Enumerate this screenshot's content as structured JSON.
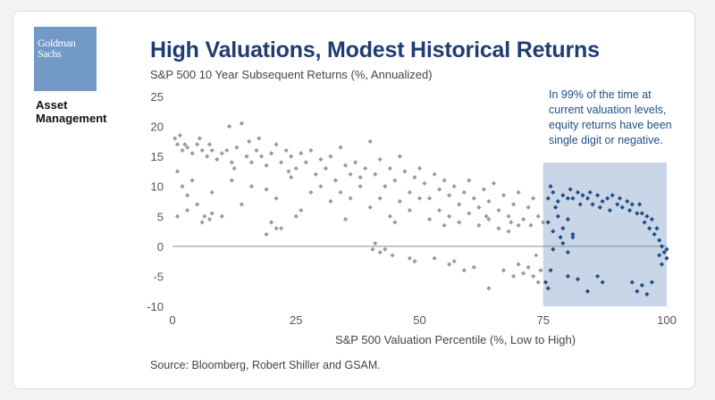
{
  "logo": {
    "line1": "Goldman",
    "line2": "Sachs",
    "color": "#7399c6"
  },
  "brand": {
    "line1": "Asset",
    "line2": "Management"
  },
  "chart_data": {
    "type": "scatter",
    "title": "High Valuations, Modest Historical Returns",
    "subtitle": "S&P 500 10 Year Subsequent Returns (%, Annualized)",
    "xlabel": "S&P 500 Valuation Percentile (%, Low to High)",
    "ylabel": "",
    "xlim": [
      0,
      100
    ],
    "ylim": [
      -10,
      25
    ],
    "xticks": [
      "0",
      "25",
      "50",
      "75",
      "100"
    ],
    "yticks": [
      "25",
      "20",
      "15",
      "10",
      "5",
      "0",
      "-5",
      "-10"
    ],
    "grid": false,
    "zero_line": true,
    "series": [
      {
        "color": "#9a9a9a",
        "points": [
          [
            0.5,
            18
          ],
          [
            1,
            17
          ],
          [
            1.5,
            18.5
          ],
          [
            2,
            16
          ],
          [
            2.5,
            17
          ],
          [
            3,
            16.5
          ],
          [
            4,
            15.5
          ],
          [
            5,
            17
          ],
          [
            5.5,
            18
          ],
          [
            6,
            16
          ],
          [
            7,
            15
          ],
          [
            7.5,
            17
          ],
          [
            8,
            16
          ],
          [
            9,
            14.5
          ],
          [
            10,
            15.5
          ],
          [
            11,
            16
          ],
          [
            11.5,
            20
          ],
          [
            12,
            14
          ],
          [
            12.5,
            13
          ],
          [
            13,
            16.5
          ],
          [
            14,
            20.5
          ],
          [
            15,
            15
          ],
          [
            15.5,
            17.5
          ],
          [
            16,
            14
          ],
          [
            17,
            16
          ],
          [
            17.5,
            18
          ],
          [
            18,
            15
          ],
          [
            19,
            13.5
          ],
          [
            20,
            15.5
          ],
          [
            21,
            17
          ],
          [
            22,
            14
          ],
          [
            23,
            16
          ],
          [
            23.5,
            12.5
          ],
          [
            24,
            15
          ],
          [
            25,
            13
          ],
          [
            26,
            15.5
          ],
          [
            27,
            14
          ],
          [
            28,
            16
          ],
          [
            29,
            12
          ],
          [
            30,
            14.5
          ],
          [
            31,
            13
          ],
          [
            32,
            15
          ],
          [
            33,
            11
          ],
          [
            34,
            16.5
          ],
          [
            35,
            13.5
          ],
          [
            36,
            12
          ],
          [
            37,
            14
          ],
          [
            38,
            11.5
          ],
          [
            39,
            13
          ],
          [
            40,
            17.5
          ],
          [
            41,
            12
          ],
          [
            42,
            14.5
          ],
          [
            43,
            10
          ],
          [
            44,
            13
          ],
          [
            45,
            11
          ],
          [
            46,
            15
          ],
          [
            47,
            12.5
          ],
          [
            48,
            9
          ],
          [
            49,
            11.5
          ],
          [
            50,
            13
          ],
          [
            51,
            10.5
          ],
          [
            52,
            8
          ],
          [
            53,
            12
          ],
          [
            54,
            9.5
          ],
          [
            55,
            11
          ],
          [
            56,
            8.5
          ],
          [
            57,
            10
          ],
          [
            58,
            7
          ],
          [
            59,
            9
          ],
          [
            60,
            11
          ],
          [
            61,
            8
          ],
          [
            62,
            6.5
          ],
          [
            63,
            9.5
          ],
          [
            64,
            7.5
          ],
          [
            65,
            10.5
          ],
          [
            66,
            6
          ],
          [
            67,
            8.5
          ],
          [
            68,
            5
          ],
          [
            69,
            7
          ],
          [
            70,
            9
          ],
          [
            71,
            4.5
          ],
          [
            72,
            6.5
          ],
          [
            73,
            8
          ],
          [
            74,
            5
          ],
          [
            75,
            4
          ],
          [
            72.5,
            3.5
          ],
          [
            68.5,
            4
          ],
          [
            63.5,
            5
          ],
          [
            1,
            12.5
          ],
          [
            2,
            10
          ],
          [
            3,
            8.5
          ],
          [
            4,
            11
          ],
          [
            5,
            7
          ],
          [
            8,
            9
          ],
          [
            10,
            5
          ],
          [
            12,
            11
          ],
          [
            14,
            7
          ],
          [
            16,
            10
          ],
          [
            19,
            9.5
          ],
          [
            21,
            8
          ],
          [
            24,
            11.5
          ],
          [
            26,
            6
          ],
          [
            28,
            9
          ],
          [
            30,
            10
          ],
          [
            32,
            7.5
          ],
          [
            34,
            9
          ],
          [
            36,
            8
          ],
          [
            38,
            10
          ],
          [
            40,
            6.5
          ],
          [
            42,
            8
          ],
          [
            44,
            5
          ],
          [
            46,
            7.5
          ],
          [
            48,
            6
          ],
          [
            50,
            8
          ],
          [
            52,
            4.5
          ],
          [
            54,
            6
          ],
          [
            56,
            5
          ],
          [
            58,
            4
          ],
          [
            60,
            5.5
          ],
          [
            62,
            3.5
          ],
          [
            64,
            4.5
          ],
          [
            66,
            3
          ],
          [
            68,
            2.5
          ],
          [
            70,
            3.5
          ],
          [
            1,
            5
          ],
          [
            3,
            6
          ],
          [
            6,
            4
          ],
          [
            6.5,
            5
          ],
          [
            7.5,
            4.5
          ],
          [
            8,
            5.5
          ],
          [
            20,
            4
          ],
          [
            22,
            3
          ],
          [
            25,
            5
          ],
          [
            35,
            4.5
          ],
          [
            45,
            4
          ],
          [
            55,
            3.5
          ],
          [
            19,
            2
          ],
          [
            21,
            3
          ],
          [
            40.5,
            -0.5
          ],
          [
            41,
            0.5
          ],
          [
            42,
            -1
          ],
          [
            43,
            -0.5
          ],
          [
            44.5,
            -1.5
          ],
          [
            48,
            -2
          ],
          [
            49,
            -2.5
          ],
          [
            53,
            -2
          ],
          [
            56,
            -3
          ],
          [
            59,
            -4
          ],
          [
            64,
            -7
          ],
          [
            67,
            -4
          ],
          [
            69,
            -5
          ],
          [
            70,
            -3
          ],
          [
            71,
            -4.5
          ],
          [
            72,
            -3.5
          ],
          [
            73,
            -5
          ],
          [
            74,
            -6
          ],
          [
            74.5,
            -4
          ],
          [
            57,
            -2.5
          ],
          [
            61,
            -3.5
          ]
        ]
      },
      {
        "color": "#1e4e8a",
        "points": [
          [
            76,
            8
          ],
          [
            76.5,
            10
          ],
          [
            77,
            9
          ],
          [
            77.5,
            6.5
          ],
          [
            78,
            7.5
          ],
          [
            79,
            8.5
          ],
          [
            80,
            8
          ],
          [
            80.5,
            9.5
          ],
          [
            81,
            8
          ],
          [
            82,
            9
          ],
          [
            82.5,
            7
          ],
          [
            83,
            8.5
          ],
          [
            84,
            8
          ],
          [
            84.5,
            9
          ],
          [
            85,
            7
          ],
          [
            86,
            8.5
          ],
          [
            86.5,
            6.5
          ],
          [
            87,
            7.5
          ],
          [
            88,
            8
          ],
          [
            88.5,
            6
          ],
          [
            89,
            8.5
          ],
          [
            90,
            7
          ],
          [
            90.5,
            8
          ],
          [
            91,
            6.5
          ],
          [
            92,
            7.5
          ],
          [
            92.5,
            6
          ],
          [
            93,
            7
          ],
          [
            94,
            5.5
          ],
          [
            94.5,
            7
          ],
          [
            95,
            5.5
          ],
          [
            95.5,
            4
          ],
          [
            96,
            5
          ],
          [
            96.5,
            3
          ],
          [
            97,
            4.5
          ],
          [
            97.5,
            2
          ],
          [
            98,
            3
          ],
          [
            98.5,
            1
          ],
          [
            99,
            0
          ],
          [
            99.5,
            -1
          ],
          [
            100,
            -2
          ],
          [
            99,
            -3
          ],
          [
            98.5,
            -1.5
          ],
          [
            100,
            -0.5
          ],
          [
            76,
            4
          ],
          [
            77,
            2.5
          ],
          [
            78,
            5
          ],
          [
            79,
            3
          ],
          [
            80,
            4.5
          ],
          [
            81,
            2
          ],
          [
            78.5,
            1.5
          ],
          [
            79,
            0.5
          ],
          [
            77,
            -0.5
          ],
          [
            80,
            -1
          ],
          [
            81,
            1.5
          ],
          [
            76.5,
            -4
          ],
          [
            80,
            -5
          ],
          [
            82,
            -5.5
          ],
          [
            84,
            -7.5
          ],
          [
            86,
            -5
          ],
          [
            87,
            -6
          ],
          [
            93,
            -6
          ],
          [
            94,
            -7.5
          ],
          [
            95,
            -6.5
          ],
          [
            96,
            -8
          ],
          [
            97,
            -6
          ],
          [
            75.5,
            -6
          ],
          [
            76,
            -7
          ]
        ]
      }
    ],
    "highlight": {
      "x": [
        75,
        100
      ],
      "color": "#c9d6e8"
    },
    "annotation": {
      "lines": [
        "In 99% of the time at",
        "current valuation levels,",
        "equity returns have been",
        "single digit or negative."
      ],
      "color": "#1f4f86"
    },
    "marker": {
      "x": 75,
      "y": -1.2,
      "color": "#e8765b"
    }
  },
  "source": "Source: Bloomberg, Robert Shiller and GSAM."
}
